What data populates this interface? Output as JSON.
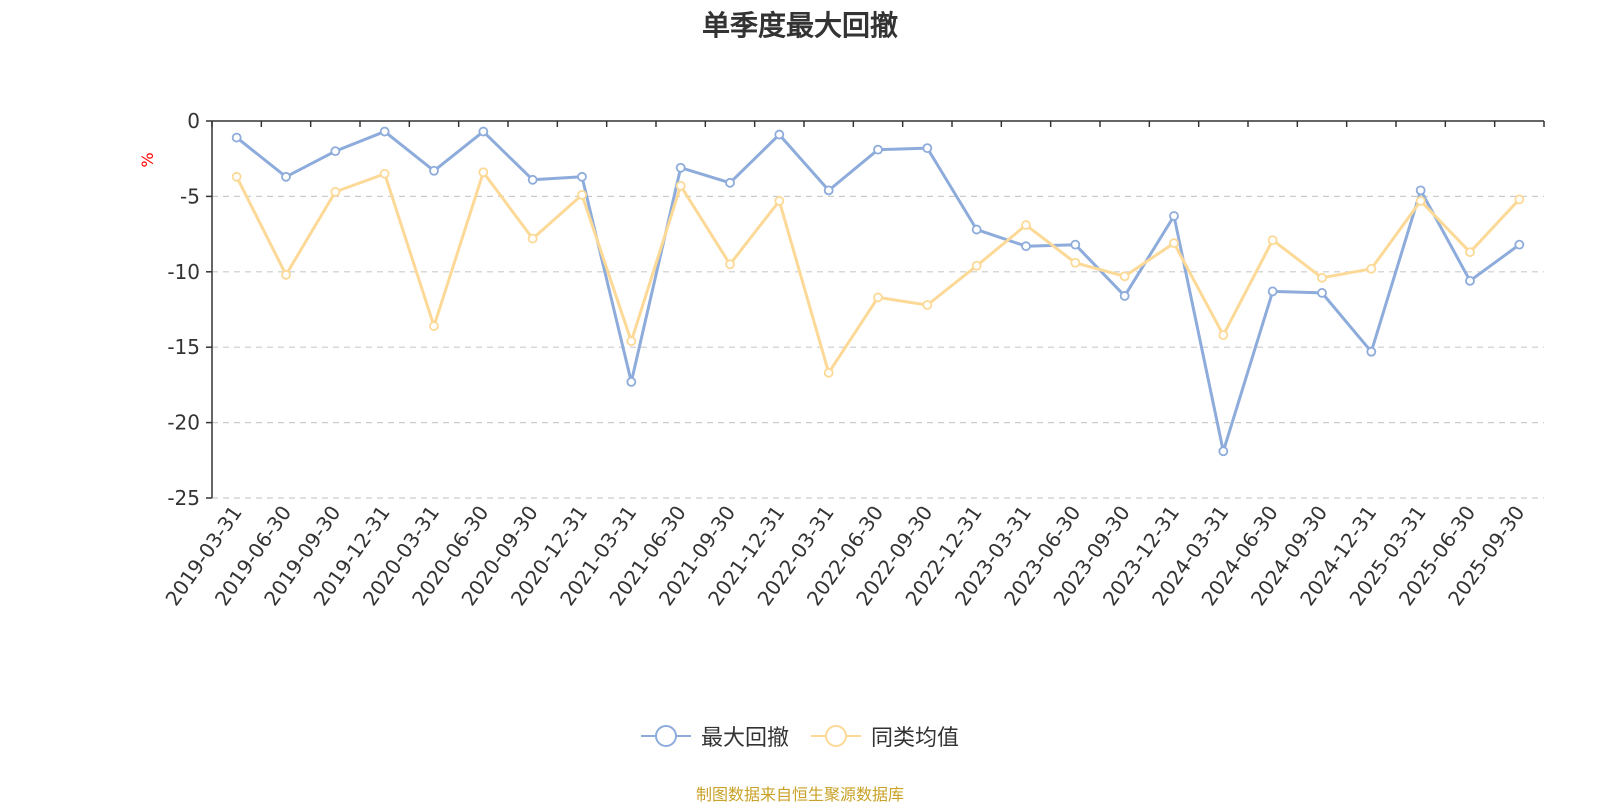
{
  "chart_data": {
    "type": "line",
    "title": "单季度最大回撤",
    "ylabel": "%",
    "ylim": [
      -25,
      0
    ],
    "yticks": [
      0,
      -5,
      -10,
      -15,
      -20,
      -25
    ],
    "grid": true,
    "legend_position": "bottom",
    "categories": [
      "2019-03-31",
      "2019-06-30",
      "2019-09-30",
      "2019-12-31",
      "2020-03-31",
      "2020-06-30",
      "2020-09-30",
      "2020-12-31",
      "2021-03-31",
      "2021-06-30",
      "2021-09-30",
      "2021-12-31",
      "2022-03-31",
      "2022-06-30",
      "2022-09-30",
      "2022-12-31",
      "2023-03-31",
      "2023-06-30",
      "2023-09-30",
      "2023-12-31",
      "2024-03-31",
      "2024-06-30",
      "2024-09-30",
      "2024-12-31",
      "2025-03-31",
      "2025-06-30",
      "2025-09-30"
    ],
    "series": [
      {
        "name": "最大回撤",
        "color": "#8eacdb",
        "values": [
          -1.1,
          -3.7,
          -2.0,
          -0.7,
          -3.3,
          -0.7,
          -3.9,
          -3.7,
          -17.3,
          -3.1,
          -4.1,
          -0.9,
          -4.6,
          -1.9,
          -1.8,
          -7.2,
          -8.3,
          -8.2,
          -11.6,
          -6.3,
          -21.9,
          -11.3,
          -11.4,
          -15.3,
          -4.6,
          -10.6,
          -8.2
        ]
      },
      {
        "name": "同类均值",
        "color": "#fcd997",
        "values": [
          -3.7,
          -10.2,
          -4.7,
          -3.5,
          -13.6,
          -3.4,
          -7.8,
          -4.9,
          -14.6,
          -4.3,
          -9.5,
          -5.3,
          -16.7,
          -11.7,
          -12.2,
          -9.6,
          -6.9,
          -9.4,
          -10.3,
          -8.1,
          -14.2,
          -7.9,
          -10.4,
          -9.8,
          -5.3,
          -8.7,
          -5.2
        ]
      }
    ]
  },
  "source_note": "制图数据来自恒生聚源数据库"
}
